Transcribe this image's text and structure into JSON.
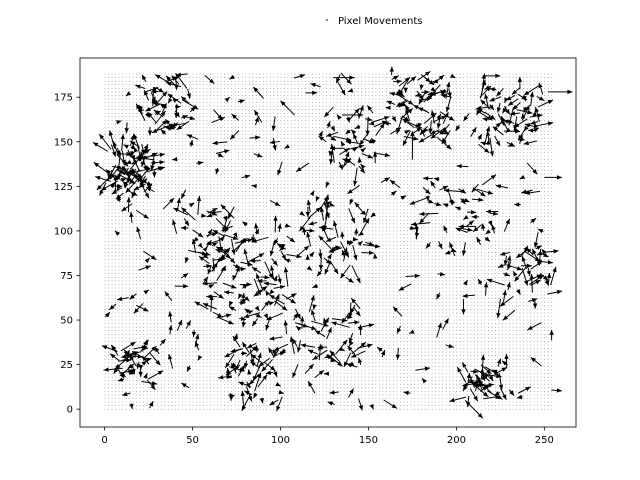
{
  "chart_data": {
    "type": "quiver",
    "legend": {
      "label": "Pixel Movements",
      "placement": "upper-center-outside"
    },
    "x_range": [
      -14,
      268
    ],
    "y_range": [
      -10,
      197
    ],
    "x_ticks": [
      0,
      50,
      100,
      150,
      200,
      250
    ],
    "y_ticks": [
      0,
      25,
      50,
      75,
      100,
      125,
      150,
      175
    ],
    "grid": false,
    "point_grid": {
      "x_min": 0,
      "x_max": 255,
      "x_step": 2,
      "y_min": 0,
      "y_max": 189,
      "y_step": 2,
      "color": "#000000"
    },
    "clusters": [
      {
        "x": 15,
        "y": 135,
        "spread": 14,
        "count": 90
      },
      {
        "x": 35,
        "y": 172,
        "spread": 14,
        "count": 40
      },
      {
        "x": 180,
        "y": 170,
        "spread": 18,
        "count": 70
      },
      {
        "x": 230,
        "y": 165,
        "spread": 18,
        "count": 60
      },
      {
        "x": 80,
        "y": 75,
        "spread": 25,
        "count": 90
      },
      {
        "x": 130,
        "y": 100,
        "spread": 20,
        "count": 50
      },
      {
        "x": 140,
        "y": 150,
        "spread": 15,
        "count": 40
      },
      {
        "x": 215,
        "y": 15,
        "spread": 10,
        "count": 40
      },
      {
        "x": 15,
        "y": 25,
        "spread": 10,
        "count": 40
      },
      {
        "x": 240,
        "y": 75,
        "spread": 15,
        "count": 40
      },
      {
        "x": 60,
        "y": 100,
        "spread": 15,
        "count": 35
      },
      {
        "x": 200,
        "y": 110,
        "spread": 20,
        "count": 35
      },
      {
        "x": 127,
        "y": 40,
        "spread": 20,
        "count": 45
      },
      {
        "x": 85,
        "y": 20,
        "spread": 15,
        "count": 40
      }
    ],
    "long_arrows": [
      {
        "x": 252,
        "y": 178,
        "u": 14,
        "v": 0
      },
      {
        "x": 250,
        "y": 130,
        "u": 10,
        "v": 0
      },
      {
        "x": 108,
        "y": 165,
        "u": -8,
        "v": 8
      },
      {
        "x": 205,
        "y": 5,
        "u": 10,
        "v": -10
      },
      {
        "x": 130,
        "y": 186,
        "u": 12,
        "v": 0
      },
      {
        "x": 215,
        "y": 187,
        "u": 10,
        "v": 0
      },
      {
        "x": 135,
        "y": 165,
        "u": 12,
        "v": 0
      },
      {
        "x": 175,
        "y": 140,
        "u": 0,
        "v": 16
      }
    ]
  }
}
